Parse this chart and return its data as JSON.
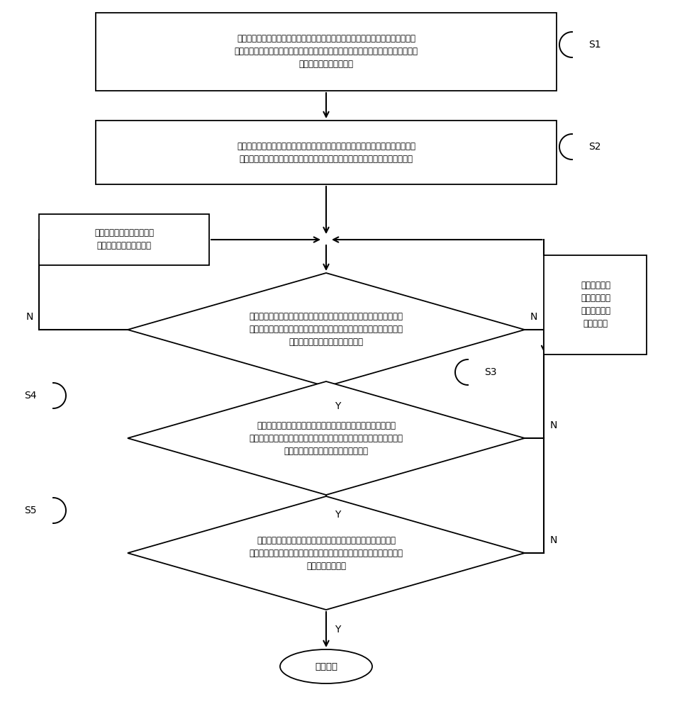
{
  "bg_color": "#ffffff",
  "box_color": "#ffffff",
  "box_edge": "#000000",
  "arrow_color": "#000000",
  "text_color": "#000000",
  "fig_width": 9.69,
  "fig_height": 10.0,
  "s1_text": "在测试区域设置各具有特定纹路的第一识别区和第二识别区，第一识别区为测试过\n程中测试者上半身所在区域，第二识别区为测试过程中测试者双腿所在区域；在测试\n区域的斜上方设置摄像机",
  "s2_text": "利用摄像机以一定帧率持续拍摄包括测试者、第一识别区和第二识别区在内的测试\n区域图像，得到第一识别区内的第一纹路图像以及第二识别区内的第二纹路图像",
  "left_box_text": "将第一纹路图像的纹路像素\n值最小那帧设置为起始帧",
  "right_box_text": "将第一纹路图\n像的纹路像素\n值最大那帧设\n置为起始帧",
  "d1_text": "分析自起始帧往后的各帧第一纹路图像，当发现第一纹路图像中纹路的\n像素值由逐渐减小变化为逐渐增大时，判定第一纹路图像中纹路的最小\n像素值是否小于一预设的低位阈值",
  "d2_text": "继续分析后续各帧的第一纹路图像，当发现第一纹路图像中纹路\n的像素值由逐渐增大又变化为逐渐减小时，判定第一纹路图像中纹路的\n最大像素值是否大于一预设的高位阈值",
  "d3_text": "提取自起始帧至第一纹路图像的纹路像素值最大那帧期间所有的\n第二纹路图像，判定该所有的第二纹路图像中纹路的像素值是否均大于\n一预设的跪姿阈值",
  "end_text": "计数一次",
  "s1_label": "S1",
  "s2_label": "S2",
  "s3_label": "S3",
  "s4_label": "S4",
  "s5_label": "S5"
}
